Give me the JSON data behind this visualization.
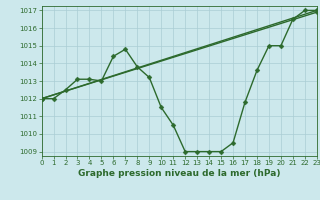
{
  "line1_x": [
    0,
    1,
    2,
    3,
    4,
    5,
    6,
    7,
    8,
    9,
    10,
    11,
    12,
    13,
    14,
    15,
    16,
    17,
    18,
    19,
    20,
    21,
    22,
    23
  ],
  "line1_y": [
    1012.0,
    1012.0,
    1012.5,
    1013.1,
    1013.1,
    1013.0,
    1014.4,
    1014.8,
    1013.8,
    1013.2,
    1011.5,
    1010.5,
    1009.0,
    1009.0,
    1009.0,
    1009.0,
    1009.5,
    1011.8,
    1013.6,
    1015.0,
    1015.0,
    1016.5,
    1017.0,
    1017.0
  ],
  "line2_x": [
    0,
    23
  ],
  "line2_y": [
    1012.0,
    1016.9
  ],
  "line3_x": [
    0,
    23
  ],
  "line3_y": [
    1012.0,
    1017.0
  ],
  "line_color": "#2d6a2d",
  "bg_color": "#cce8ec",
  "grid_major_color": "#aacdd4",
  "grid_minor_color": "#bbdde2",
  "xlabel": "Graphe pression niveau de la mer (hPa)",
  "xlim": [
    0,
    23
  ],
  "ylim": [
    1008.75,
    1017.25
  ],
  "yticks": [
    1009,
    1010,
    1011,
    1012,
    1013,
    1014,
    1015,
    1016,
    1017
  ],
  "xticks": [
    0,
    1,
    2,
    3,
    4,
    5,
    6,
    7,
    8,
    9,
    10,
    11,
    12,
    13,
    14,
    15,
    16,
    17,
    18,
    19,
    20,
    21,
    22,
    23
  ],
  "marker": "D",
  "markersize": 2.5,
  "linewidth": 1.0,
  "tick_fontsize": 5.0,
  "xlabel_fontsize": 6.5
}
